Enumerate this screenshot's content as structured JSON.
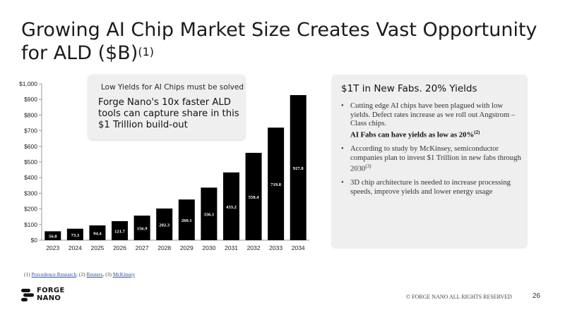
{
  "slide": {
    "title": "Growing AI Chip Market Size Creates Vast Opportunity for ALD ($B)",
    "title_superscript": "(1)",
    "page_number": "26",
    "copyright": "© FORGE NANO ALL RIGHTS RESERVED"
  },
  "callout": {
    "subtitle": "Low Yields for AI Chips must be solved",
    "text": "Forge Nano's 10x faster ALD tools can capture share in this $1 Trillion build-out"
  },
  "panel": {
    "title": "$1T in New Fabs. 20% Yields",
    "bullet1_text": "Cutting edge AI chips have been plagued with low yields. Defect rates increase as we roll out Angstrom – Class chips.",
    "bullet1_emphasis": "AI Fabs can have yields as low as 20%",
    "bullet1_emphasis_sup": "(2)",
    "bullet2_text": "According to study by McKinsey, semiconductor companies plan to invest $1 Trillion in new fabs through 2030",
    "bullet2_sup": "(3)",
    "bullet3_text": "3D chip architecture is needed to increase processing speeds, improve yields and lower energy usage"
  },
  "footnotes": {
    "n1_prefix": "(1)",
    "n1_link": "Precedence Research",
    "n2_prefix": ", (2)",
    "n2_link": "Reuters",
    "n3_prefix": ", (3)",
    "n3_link": "McKinsey"
  },
  "logo": {
    "line1": "FORGE",
    "line2": "NANO"
  },
  "colors": {
    "bar": "#000000",
    "bar_label": "#ffffff",
    "panel_bg": "#efefef",
    "link": "#1f4fb0"
  },
  "chart_data": {
    "type": "bar",
    "categories": [
      "2023",
      "2024",
      "2025",
      "2026",
      "2027",
      "2028",
      "2029",
      "2030",
      "2031",
      "2032",
      "2033",
      "2034"
    ],
    "values": [
      56.8,
      73.3,
      94.4,
      121.7,
      156.9,
      202.3,
      260.1,
      336.1,
      433.2,
      558.4,
      719.8,
      927.8
    ],
    "value_labels": [
      "56.8",
      "73.3",
      "94.4",
      "121.7",
      "156.9",
      "202.3",
      "260.1",
      "336.1",
      "433.2",
      "558.4",
      "719.8",
      "927.8"
    ],
    "ylim": [
      0,
      1000
    ],
    "yticks": [
      0,
      100,
      200,
      300,
      400,
      500,
      600,
      700,
      800,
      900,
      1000
    ],
    "ytick_labels": [
      "$0",
      "$100",
      "$200",
      "$300",
      "$400",
      "$500",
      "$600",
      "$700",
      "$800",
      "$900",
      "$1,000"
    ],
    "grid": false,
    "legend": "none"
  }
}
